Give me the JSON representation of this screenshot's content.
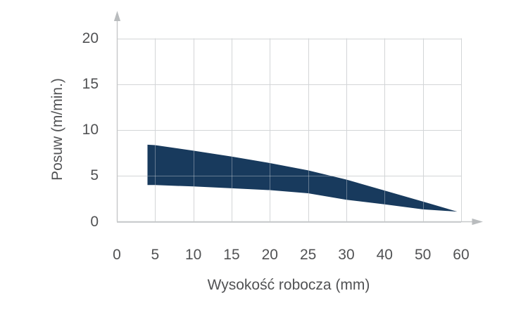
{
  "chart_data": {
    "type": "area",
    "xlabel": "Wysokość robocza (mm)",
    "ylabel": "Posuw (m/min.)",
    "x_ticks": [
      0,
      5,
      10,
      15,
      20,
      25,
      30,
      40,
      50,
      60
    ],
    "y_ticks": [
      0,
      5,
      10,
      15,
      20
    ],
    "xlim": [
      0,
      60
    ],
    "ylim": [
      0,
      20
    ],
    "grid": true,
    "legend_position": "none",
    "x_axis_note": "ticks are evenly spaced on screen although step changes from 5 to 10 after 30",
    "band": {
      "name": "posuw-working-range",
      "x": [
        4,
        5,
        10,
        15,
        20,
        25,
        30,
        40,
        50,
        59
      ],
      "upper": [
        8.4,
        8.35,
        7.75,
        7.1,
        6.4,
        5.6,
        4.6,
        3.4,
        2.2,
        1.1
      ],
      "lower": [
        4.0,
        4.0,
        3.85,
        3.65,
        3.45,
        3.1,
        2.4,
        1.9,
        1.35,
        1.1
      ]
    },
    "colors": {
      "band": "#183a5d",
      "grid": "#d6d6d6",
      "grid_over_band": "rgba(208,213,218,0.42)",
      "axis": "#c6c8c9",
      "arrow": "#b9bcbe",
      "text": "#515254"
    }
  }
}
